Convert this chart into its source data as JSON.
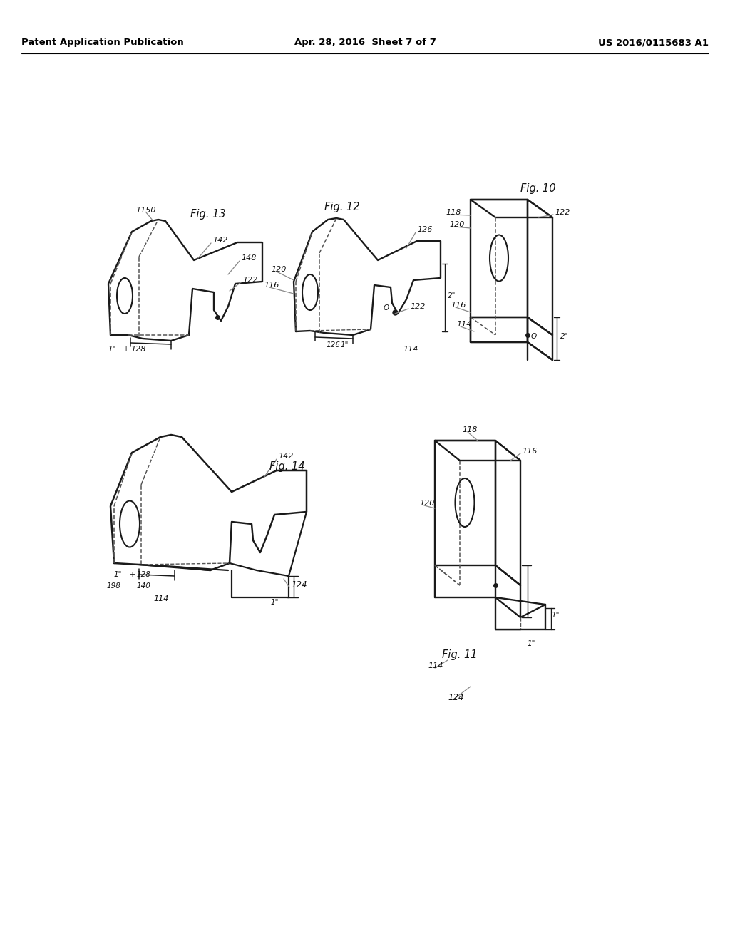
{
  "bg_color": "#ffffff",
  "header_left": "Patent Application Publication",
  "header_center": "Apr. 28, 2016  Sheet 7 of 7",
  "header_right": "US 2016/0115683 A1",
  "line_color": "#1a1a1a",
  "dashed_color": "#555555",
  "text_color": "#111111",
  "gray_color": "#888888"
}
